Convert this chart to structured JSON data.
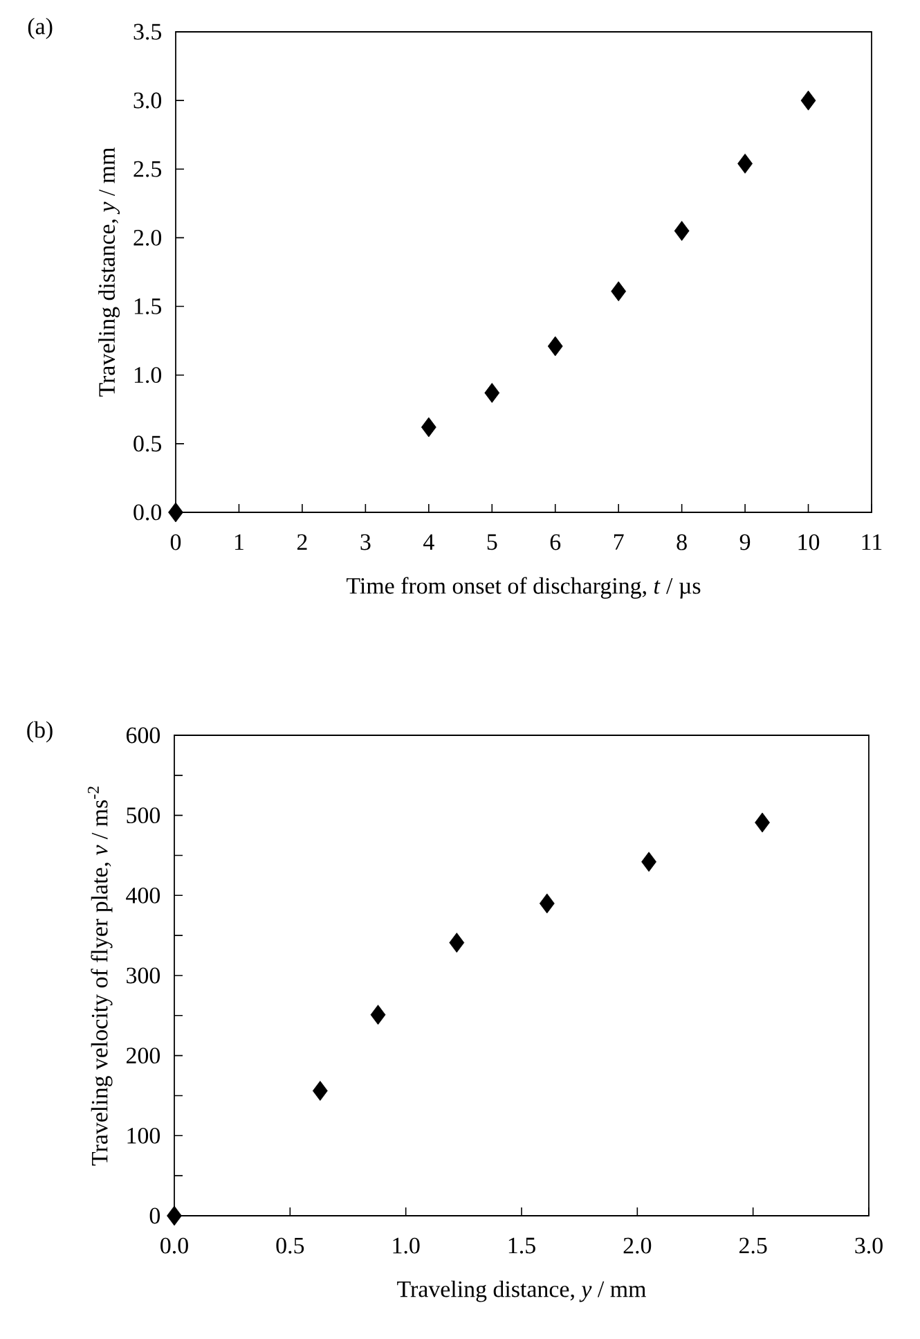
{
  "chart_data": [
    {
      "type": "scatter",
      "title": "(a)",
      "xlabel": "Time from onset of discharging, *t* / µs",
      "ylabel": "Traveling distance, *y* / mm",
      "x": [
        0,
        4,
        5,
        6,
        7,
        8,
        9,
        10
      ],
      "series": [
        {
          "color": "#000000",
          "values": [
            0,
            0.62,
            0.87,
            1.21,
            1.61,
            2.05,
            2.54,
            3.0
          ]
        }
      ],
      "marker": "diamond",
      "xlim": [
        0,
        11
      ],
      "xticks": [
        0,
        1,
        2,
        3,
        4,
        5,
        6,
        7,
        8,
        9,
        10,
        11
      ],
      "ylim": [
        0,
        3.5
      ],
      "yticks": [
        {
          "value": 0,
          "label": "0.0"
        },
        {
          "value": 0.5,
          "label": "0.5"
        },
        {
          "value": 1,
          "label": "1.0"
        },
        {
          "value": 1.5,
          "label": "1.5"
        },
        {
          "value": 2,
          "label": "2.0"
        },
        {
          "value": 2.5,
          "label": "2.5"
        },
        {
          "value": 3,
          "label": "3.0"
        },
        {
          "value": 3.5,
          "label": "3.5"
        }
      ]
    },
    {
      "type": "scatter",
      "title": "(b)",
      "xlabel": "Traveling distance, *y* / mm",
      "ylabel": "Traveling velocity of flyer plate, *v* / ms$^{-2}$",
      "x": [
        0,
        0.63,
        0.88,
        1.22,
        1.61,
        2.05,
        2.54
      ],
      "series": [
        {
          "color": "#000000",
          "values": [
            0,
            156,
            251,
            341,
            390,
            442,
            491
          ]
        }
      ],
      "marker": "diamond",
      "xlim": [
        0,
        3
      ],
      "xticks": [
        {
          "value": 0,
          "label": "0.0"
        },
        {
          "value": 0.5,
          "label": "0.5"
        },
        {
          "value": 1,
          "label": "1.0"
        },
        {
          "value": 1.5,
          "label": "1.5"
        },
        {
          "value": 2,
          "label": "2.0"
        },
        {
          "value": 2.5,
          "label": "2.5"
        },
        {
          "value": 3,
          "label": "3.0"
        }
      ],
      "ylim": [
        0,
        600
      ],
      "yticks": [
        0,
        {
          "value": 50,
          "label": null
        },
        100,
        {
          "value": 150,
          "label": null
        },
        200,
        {
          "value": 250,
          "label": null
        },
        300,
        {
          "value": 350,
          "label": null
        },
        400,
        {
          "value": 450,
          "label": null
        },
        500,
        {
          "value": 550,
          "label": null
        },
        600
      ]
    }
  ]
}
